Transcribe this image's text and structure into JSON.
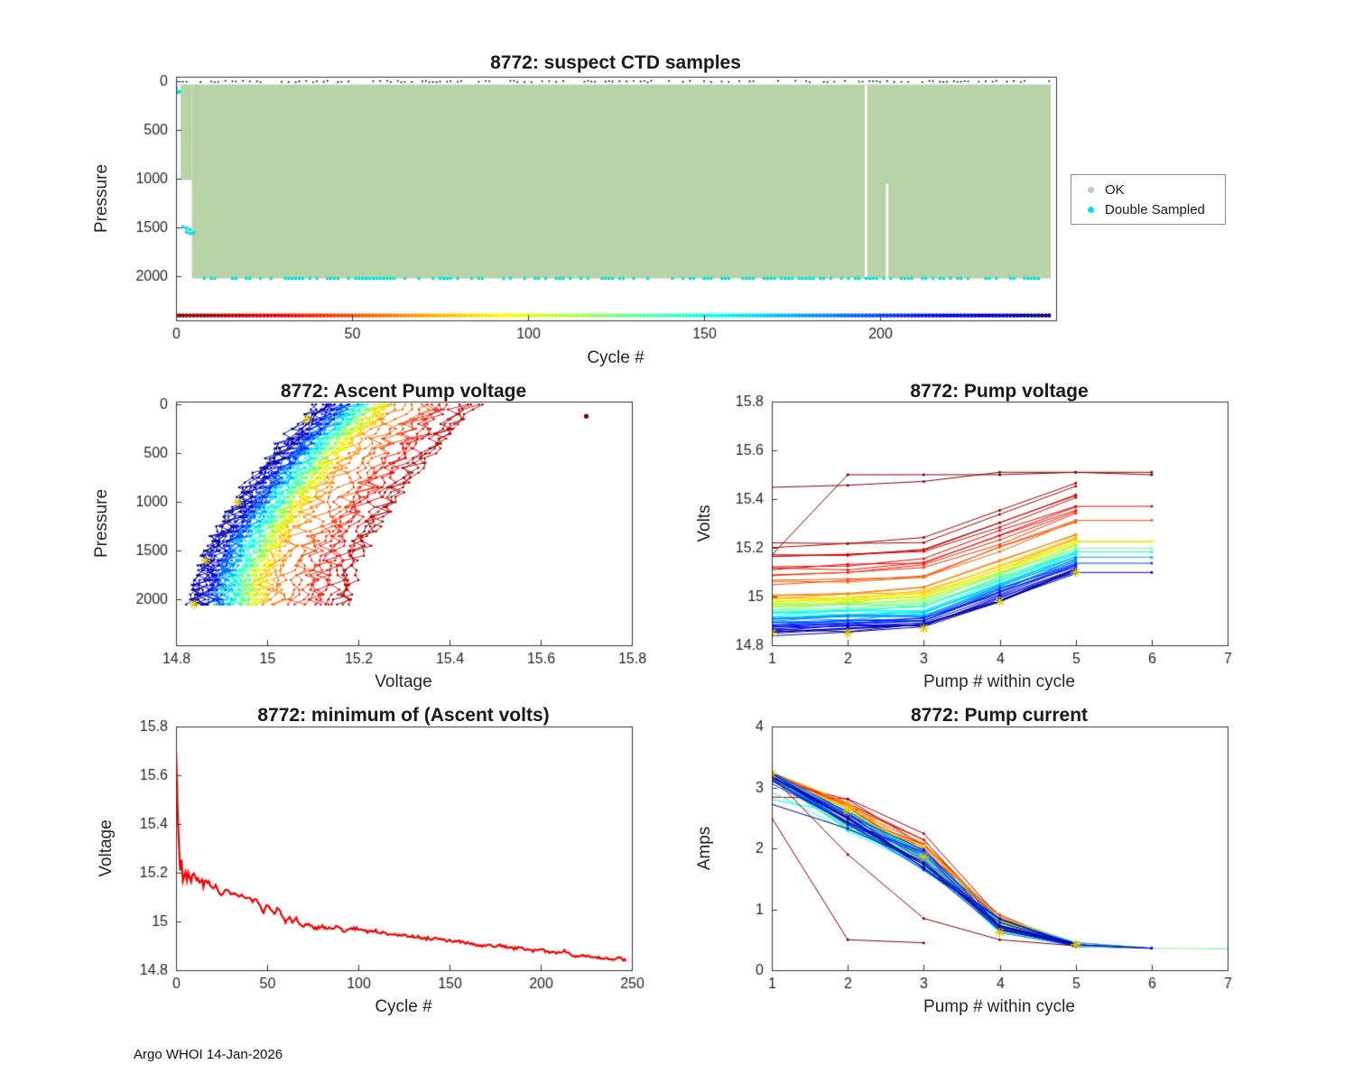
{
  "figure": {
    "footer": "Argo WHOI 14-Jan-2026"
  },
  "legend": {
    "items": [
      {
        "label": "OK",
        "color": "#c6c6c6",
        "marker": "dot"
      },
      {
        "label": "Double Sampled",
        "color": "#00e0e0",
        "marker": "dot"
      }
    ]
  },
  "colors": {
    "axis": "#333333",
    "tick_label": "#262626",
    "star": "#ddc900"
  },
  "charts": {
    "ctd": {
      "title": "8772: suspect CTD samples",
      "xlabel": "Cycle #",
      "ylabel": "Pressure",
      "type": "scatter",
      "xlim": [
        0,
        250
      ],
      "ylim": [
        -50,
        2450
      ],
      "y_reversed": true,
      "xticks": [
        0,
        50,
        100,
        150,
        200
      ],
      "yticks": [
        0,
        500,
        1000,
        1500,
        2000
      ],
      "max_cycle": 248,
      "ok_color": "#b9d3a8",
      "double_color": "#00e0e0",
      "ok_band": {
        "cycles": [
          4.5,
          248.5
        ],
        "pressure": [
          30,
          2020
        ]
      },
      "shallow_band": {
        "cycles": [
          1.3,
          4.5
        ],
        "pressure": [
          30,
          1010
        ]
      },
      "gaps": [
        {
          "cycle": 196,
          "pressure": [
            30,
            2020
          ]
        },
        {
          "cycle": 202,
          "pressure": [
            1050,
            2020
          ]
        }
      ],
      "double_sampled": {
        "points": [
          [
            0,
            60
          ],
          [
            0,
            95
          ],
          [
            0.5,
            110
          ],
          [
            1,
            105
          ],
          [
            2,
            1490
          ],
          [
            3,
            1505
          ],
          [
            3,
            1545
          ],
          [
            4,
            1520
          ],
          [
            4,
            1560
          ],
          [
            5,
            1555
          ]
        ],
        "bottom_pressure": 2020,
        "bottom_cycles": [
          5,
          248
        ],
        "bottom_density": 0.5
      },
      "suspect_speck_pressure": 0,
      "color_row_pressure": 2400
    },
    "apv": {
      "title": "8772: Ascent Pump voltage",
      "xlabel": "Voltage",
      "ylabel": "Pressure",
      "type": "line",
      "xlim": [
        14.8,
        15.8
      ],
      "ylim": [
        -30,
        2470
      ],
      "y_reversed": true,
      "xticks": [
        14.8,
        15,
        15.2,
        15.4,
        15.6,
        15.8
      ],
      "yticks": [
        0,
        500,
        1000,
        1500,
        2000
      ],
      "profile": {
        "n": 60,
        "max_cycle": 247,
        "surface_offset": 0.28,
        "offset_cap": 15.52,
        "max_pressure": 2050,
        "shape_exp": 1.6,
        "noise": 0.022,
        "outlier_point": {
          "voltage": 15.7,
          "pressure": 120
        },
        "star_pressures": [
          150,
          1000,
          1600,
          2050
        ]
      }
    },
    "pv": {
      "title": "8772: Pump voltage",
      "xlabel": "Pump # within cycle",
      "ylabel": "Volts",
      "type": "line",
      "xlim": [
        1,
        7
      ],
      "ylim": [
        14.8,
        15.8
      ],
      "xticks": [
        1,
        2,
        3,
        4,
        5,
        6,
        7
      ],
      "yticks": [
        14.8,
        15,
        15.2,
        15.4,
        15.6,
        15.8
      ],
      "n_cycles": 60,
      "max_cycle": 247,
      "pump_offsets": [
        0.008,
        0.016,
        0.03,
        0.14,
        0.255
      ],
      "cap": 15.51,
      "noise": 0.012,
      "outliers": [
        [
          [
            1,
            15.17
          ],
          [
            2,
            15.5
          ],
          [
            3,
            15.5
          ],
          [
            4,
            15.5
          ],
          [
            5,
            15.51
          ],
          [
            6,
            15.5
          ]
        ]
      ],
      "stars": [
        [
          1,
          14.85
        ],
        [
          2,
          14.85
        ],
        [
          3,
          14.87
        ],
        [
          4,
          14.98
        ],
        [
          5,
          15.1
        ]
      ]
    },
    "mav": {
      "title": "8772: minimum of (Ascent volts)",
      "xlabel": "Cycle #",
      "ylabel": "Voltage",
      "type": "line",
      "color": "#f40000",
      "xlim": [
        0,
        250
      ],
      "ylim": [
        14.8,
        15.8
      ],
      "xticks": [
        0,
        50,
        100,
        150,
        200,
        250
      ],
      "yticks": [
        14.8,
        15,
        15.2,
        15.4,
        15.6,
        15.8
      ],
      "noise": 0.006,
      "series": [
        [
          0,
          15.7
        ],
        [
          0.5,
          15.55
        ],
        [
          1,
          15.44
        ],
        [
          1.5,
          15.33
        ],
        [
          2,
          15.24
        ],
        [
          2.5,
          15.19
        ],
        [
          3,
          15.25
        ],
        [
          3.5,
          15.18
        ],
        [
          4,
          15.15
        ],
        [
          5,
          15.22
        ],
        [
          6,
          15.17
        ],
        [
          7,
          15.21
        ],
        [
          8,
          15.16
        ],
        [
          9,
          15.19
        ],
        [
          10,
          15.2
        ],
        [
          11,
          15.16
        ],
        [
          12,
          15.18
        ],
        [
          13,
          15.15
        ],
        [
          14,
          15.18
        ],
        [
          15,
          15.14
        ],
        [
          16,
          15.17
        ],
        [
          18,
          15.16
        ],
        [
          20,
          15.13
        ],
        [
          22,
          15.15
        ],
        [
          24,
          15.11
        ],
        [
          26,
          15.12
        ],
        [
          28,
          15.13
        ],
        [
          30,
          15.11
        ],
        [
          32,
          15.12
        ],
        [
          34,
          15.1
        ],
        [
          36,
          15.11
        ],
        [
          38,
          15.09
        ],
        [
          40,
          15.1
        ],
        [
          42,
          15.08
        ],
        [
          44,
          15.09
        ],
        [
          46,
          15.06
        ],
        [
          48,
          15.04
        ],
        [
          50,
          15.07
        ],
        [
          52,
          15.05
        ],
        [
          54,
          15.03
        ],
        [
          56,
          15.06
        ],
        [
          58,
          15.02
        ],
        [
          60,
          15.0
        ],
        [
          62,
          15.02
        ],
        [
          64,
          14.99
        ],
        [
          66,
          15.01
        ],
        [
          68,
          14.98
        ],
        [
          70,
          14.98
        ],
        [
          73,
          14.99
        ],
        [
          76,
          14.97
        ],
        [
          80,
          14.98
        ],
        [
          84,
          14.97
        ],
        [
          88,
          14.98
        ],
        [
          92,
          14.96
        ],
        [
          96,
          14.97
        ],
        [
          100,
          14.97
        ],
        [
          105,
          14.96
        ],
        [
          110,
          14.96
        ],
        [
          115,
          14.95
        ],
        [
          120,
          14.95
        ],
        [
          125,
          14.94
        ],
        [
          130,
          14.94
        ],
        [
          136,
          14.93
        ],
        [
          142,
          14.93
        ],
        [
          148,
          14.92
        ],
        [
          154,
          14.92
        ],
        [
          160,
          14.91
        ],
        [
          166,
          14.9
        ],
        [
          172,
          14.9
        ],
        [
          178,
          14.9
        ],
        [
          184,
          14.89
        ],
        [
          190,
          14.89
        ],
        [
          196,
          14.88
        ],
        [
          202,
          14.88
        ],
        [
          208,
          14.87
        ],
        [
          213,
          14.88
        ],
        [
          218,
          14.86
        ],
        [
          223,
          14.86
        ],
        [
          228,
          14.85
        ],
        [
          233,
          14.85
        ],
        [
          238,
          14.845
        ],
        [
          243,
          14.85
        ],
        [
          247,
          14.84
        ]
      ]
    },
    "pc": {
      "title": "8772: Pump current",
      "xlabel": "Pump # within cycle",
      "ylabel": "Amps",
      "type": "line",
      "xlim": [
        1,
        7
      ],
      "ylim": [
        0,
        4
      ],
      "xticks": [
        1,
        2,
        3,
        4,
        5,
        6,
        7
      ],
      "yticks": [
        0,
        1,
        2,
        3,
        4
      ],
      "n_cycles": 60,
      "max_cycle": 247,
      "means": [
        3.18,
        2.45,
        1.8,
        0.72,
        0.42
      ],
      "tail_value": 0.36,
      "tail7_value": 0.35,
      "outliers": [
        [
          [
            1,
            2.5
          ],
          [
            2,
            0.5
          ],
          [
            3,
            0.45
          ]
        ],
        [
          [
            1,
            3.18
          ],
          [
            2,
            1.9
          ],
          [
            3,
            0.85
          ],
          [
            4,
            0.5
          ],
          [
            5,
            0.4
          ]
        ]
      ],
      "stars": [
        [
          1,
          3.22
        ],
        [
          2,
          2.62
        ],
        [
          3,
          1.86
        ],
        [
          4,
          0.62
        ],
        [
          5,
          0.42
        ]
      ]
    }
  }
}
